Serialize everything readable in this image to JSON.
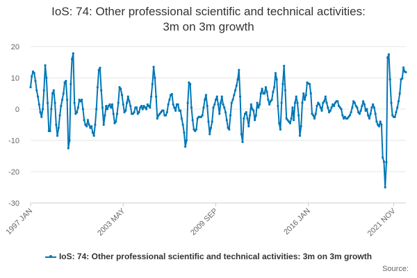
{
  "title_line1": "IoS: 74: Other professional scientific and technical activities:",
  "title_line2": "3m on 3m growth",
  "legend_label": "IoS: 74: Other professional scientific and technical activities: 3m on 3m growth",
  "source_label": "Source:",
  "colors": {
    "series": "#0076b6",
    "grid": "#e6e6e6",
    "text": "#333333"
  },
  "chart_data": {
    "type": "line",
    "title": "IoS: 74: Other professional scientific and technical activities: 3m on 3m growth",
    "xlabel": "",
    "ylabel": "",
    "ylim": [
      -30,
      20
    ],
    "yticks": [
      20,
      10,
      0,
      -10,
      -20,
      -30
    ],
    "xticks": [
      "1997 JAN",
      "2003 MAY",
      "2009 SEP",
      "2016 JAN",
      "2021 NOV"
    ],
    "x_start": "1997 JAN",
    "x_end": "2022 FEB",
    "frequency": "monthly",
    "grid": true,
    "legend_position": "bottom",
    "series": [
      {
        "name": "IoS: 74: Other professional scientific and technical activities: 3m on 3m growth",
        "values": [
          7,
          10.5,
          12,
          11.5,
          9,
          6,
          4,
          1.5,
          -1,
          -2.5,
          0,
          6,
          14,
          10,
          2,
          -7,
          -7,
          0,
          5,
          6,
          2,
          -5,
          -8.5,
          -6,
          -2,
          1,
          3,
          5,
          8.5,
          9,
          3,
          -12.5,
          -10,
          8,
          16,
          17.8,
          2,
          -1.5,
          -1,
          0.5,
          3,
          2.5,
          3,
          0,
          -3.5,
          -5,
          -5.5,
          -3.5,
          -5,
          -6,
          -5.5,
          -7.5,
          -8.5,
          -5,
          0,
          7,
          12.5,
          13.2,
          6,
          0.5,
          -5,
          -2,
          1,
          0,
          1,
          1.5,
          0.5,
          1.5,
          -1.5,
          -4.5,
          -4,
          -1.5,
          2,
          7,
          6.5,
          4.5,
          1.5,
          -1,
          -0.5,
          2,
          4,
          2.5,
          1,
          -1.5,
          -1.5,
          -1,
          0.5,
          0.5,
          -1.5,
          -1,
          0.5,
          1,
          0,
          1,
          0.5,
          0,
          1.5,
          1,
          0.5,
          4,
          8,
          13.5,
          10,
          4,
          -3,
          -2,
          -1.5,
          -1,
          -0.5,
          -0.5,
          -2,
          -2,
          -1,
          1.5,
          3,
          4.5,
          4.8,
          1.5,
          0.5,
          -0.5,
          1.5,
          1.5,
          -0.5,
          -0.5,
          -3,
          -5,
          -7.5,
          -12,
          -10,
          2,
          8.5,
          8,
          0.5,
          -3.5,
          -6.5,
          -7,
          -6.5,
          -3,
          -2.5,
          -2.5,
          -2.5,
          -2,
          0.5,
          3,
          4.5,
          1,
          -4,
          -8,
          -6,
          -4,
          0.5,
          1.5,
          3,
          4,
          1.5,
          -1.5,
          2,
          4,
          1.5,
          0.5,
          -1,
          -3.5,
          -6,
          -6.5,
          -2,
          2,
          3,
          4.5,
          6,
          7.5,
          9.5,
          12.5,
          4,
          -8,
          -10.5,
          -3,
          -1.5,
          -1,
          -3,
          -5.5,
          -2,
          1.5,
          0,
          -0.5,
          -3.5,
          -2,
          2,
          0.5,
          1.5,
          5,
          6.5,
          5,
          5,
          7,
          5.5,
          3,
          1.5,
          2.5,
          3,
          5.5,
          7,
          11.5,
          9.5,
          1,
          -4.5,
          -6.5,
          2,
          8,
          13.8,
          6,
          -3,
          -3.5,
          -4,
          -4.5,
          -3,
          0.5,
          -3.5,
          2,
          4,
          2,
          -2,
          -8.5,
          -5.5,
          2,
          5,
          3,
          4.5,
          8.5,
          8.2,
          8,
          5,
          -1.5,
          -2,
          -3,
          -1.5,
          1,
          2,
          1.5,
          0.5,
          -0.5,
          2,
          2.5,
          4,
          2,
          0.5,
          -1,
          -0.5,
          0.5,
          1.5,
          1,
          2,
          2.5,
          2.5,
          1,
          0.5,
          0,
          -2,
          -3,
          -2.5,
          -3,
          -3,
          -2.5,
          -2,
          -1,
          0.5,
          2.5,
          2,
          1,
          0.5,
          -1,
          -1.5,
          -0.5,
          1,
          2.5,
          1.5,
          -0.5,
          0,
          -2,
          -3,
          -1.5,
          0.5,
          1.5,
          0.5,
          -1.5,
          -4,
          -5,
          -5.5,
          -4,
          -5,
          -15.5,
          -16.8,
          -25,
          -17,
          16.5,
          17.5,
          9.5,
          2,
          -2,
          -2.5,
          -2.5,
          -1,
          0.5,
          2.5,
          5,
          9.5,
          9.8,
          13.3,
          12,
          11.8
        ]
      }
    ]
  }
}
